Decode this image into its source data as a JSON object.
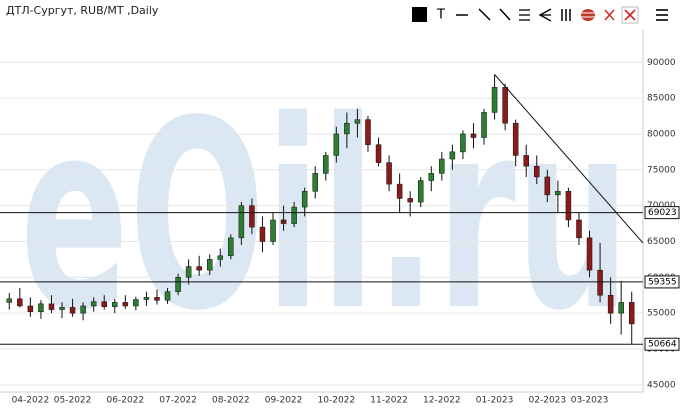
{
  "chart_data": {
    "type": "candlestick",
    "title": "ДТЛ-Сургут, RUB/MT ,Daily",
    "watermark": "eOil.ru",
    "categories": [
      null,
      "04-2022",
      "05-2022",
      "06-2022",
      "07-2022",
      "08-2022",
      "09-2022",
      "10-2022",
      "11-2022",
      "12-2022",
      "01-2023",
      "02-2023",
      "03-2023"
    ],
    "open": [
      [
        56500,
        57000
      ],
      [
        56000,
        55200,
        56300,
        55500
      ],
      [
        55800,
        55000,
        56000,
        56600,
        55900
      ],
      [
        56500,
        56000,
        56900,
        57200,
        56800
      ],
      [
        58000,
        60000,
        61500,
        61000,
        62500
      ],
      [
        63000,
        65500,
        70000,
        67000,
        65000
      ],
      [
        68000,
        67500,
        69800,
        72000,
        74500
      ],
      [
        77000,
        80000,
        81500,
        82000,
        78500
      ],
      [
        76000,
        73000,
        71000,
        70500,
        73500
      ],
      [
        74500,
        76500,
        77500,
        80000,
        79500
      ],
      [
        83000,
        86500,
        81500,
        77000,
        75500
      ],
      [
        74000,
        71500,
        72000,
        68000
      ],
      [
        65500,
        61000,
        57500,
        55000,
        56500
      ]
    ],
    "high": [
      [
        57800,
        58500
      ],
      [
        57200,
        56800,
        57500,
        56500
      ],
      [
        57000,
        56500,
        57200,
        57500,
        57000
      ],
      [
        57500,
        57300,
        58000,
        58300,
        58500
      ],
      [
        60500,
        62500,
        63000,
        63200,
        64000
      ],
      [
        66000,
        70500,
        71000,
        68500,
        69000
      ],
      [
        70000,
        70500,
        72500,
        75500,
        77500
      ],
      [
        81000,
        83000,
        83500,
        82500,
        79500
      ],
      [
        77000,
        74500,
        72000,
        74000,
        75500
      ],
      [
        77500,
        78500,
        80500,
        81500,
        83500
      ],
      [
        88300,
        87000,
        82000,
        78500,
        77000
      ],
      [
        75000,
        73500,
        72500,
        69000
      ],
      [
        66500,
        64800,
        60000,
        59500,
        58000
      ]
    ],
    "low": [
      [
        55500,
        55800
      ],
      [
        54500,
        54200,
        55000,
        54300
      ],
      [
        54500,
        54000,
        55200,
        55500,
        55000
      ],
      [
        55600,
        55400,
        56000,
        56200,
        56300
      ],
      [
        57500,
        59000,
        60200,
        60300,
        61500
      ],
      [
        62500,
        64500,
        66000,
        63500,
        64500
      ],
      [
        66500,
        67000,
        68500,
        71000,
        73500
      ],
      [
        76000,
        78000,
        79500,
        77500,
        75500
      ],
      [
        72000,
        69000,
        68500,
        69800,
        72000
      ],
      [
        73500,
        75000,
        76500,
        78000,
        78500
      ],
      [
        82000,
        80500,
        75500,
        74000,
        73000
      ],
      [
        70500,
        69000,
        67000,
        64500
      ],
      [
        60000,
        56500,
        53500,
        52000,
        50664
      ]
    ],
    "close": [
      [
        57000,
        56000
      ],
      [
        55200,
        56300,
        55500,
        55800
      ],
      [
        55000,
        56000,
        56600,
        55900,
        56500
      ],
      [
        56000,
        56900,
        57200,
        56800,
        58000
      ],
      [
        60000,
        61500,
        61000,
        62500,
        63000
      ],
      [
        65500,
        70000,
        67000,
        65000,
        68000
      ],
      [
        67500,
        69800,
        72000,
        74500,
        77000
      ],
      [
        80000,
        81500,
        82000,
        78500,
        76000
      ],
      [
        73000,
        71000,
        70500,
        73500,
        74500
      ],
      [
        76500,
        77500,
        80000,
        79500,
        83000
      ],
      [
        86500,
        81500,
        77000,
        75500,
        74000
      ],
      [
        71500,
        72000,
        68000,
        65500
      ],
      [
        61000,
        57500,
        55000,
        56500,
        53500
      ]
    ],
    "up_color": "#2e7d32",
    "down_color": "#8b1a1a",
    "levels": [
      69023,
      59355,
      50664
    ],
    "trendline": [
      88300,
      64800
    ],
    "ylim": [
      44000,
      94500
    ],
    "yticks": [
      45000,
      50000,
      55000,
      60000,
      65000,
      70000,
      75000,
      80000,
      85000,
      90000
    ],
    "grid": true
  }
}
